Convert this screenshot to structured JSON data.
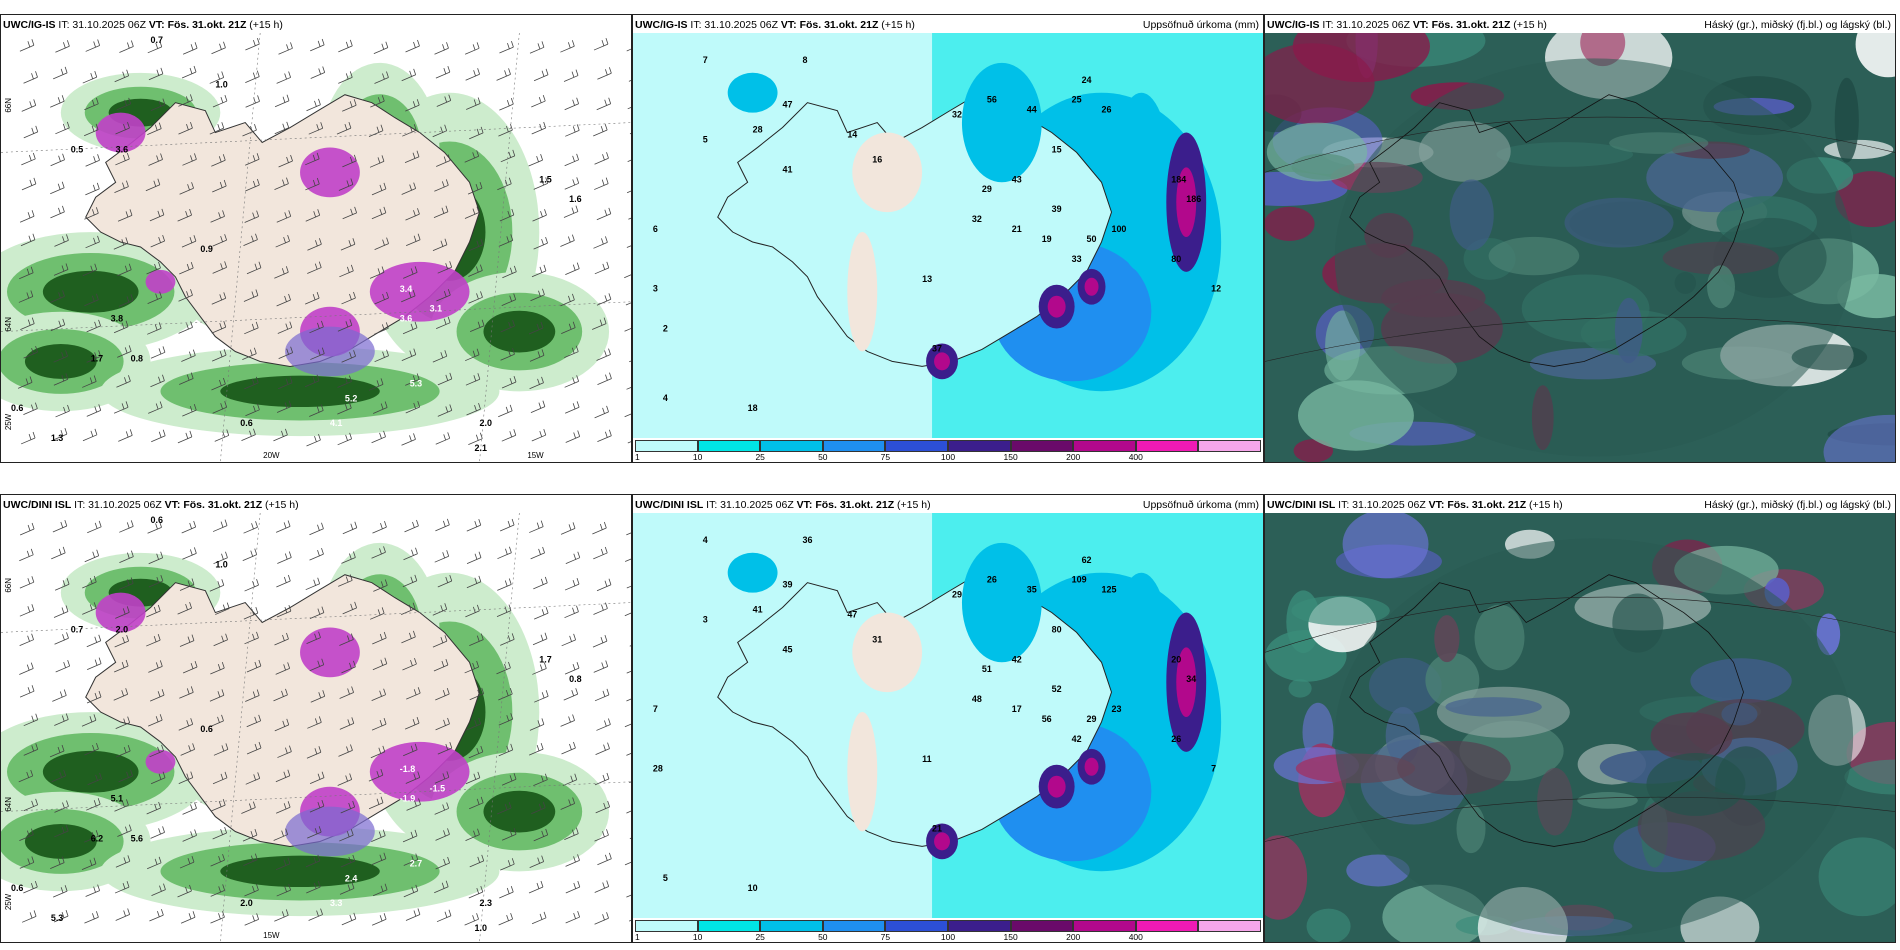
{
  "panels": [
    {
      "id": "p1",
      "model": "UWC/IG-IS",
      "it": "IT: 31.10.2025 06Z",
      "vt_label": "VT:",
      "vt": "Fös. 31.okt. 21Z",
      "lead": "(+15 h)",
      "right_title": "",
      "type": "wind-precip",
      "values": [
        "0.7",
        "1.0",
        "3.6",
        "0.5",
        "0.6",
        "3.4",
        "3.6",
        "3.1",
        "5.3",
        "5.2",
        "4.1",
        "3.8",
        "1.7",
        "0.8",
        "1.3",
        "2.0",
        "2.1",
        "0.6",
        "0.9",
        "1.5",
        "1.6"
      ],
      "axis_labels": [
        "66N",
        "64N",
        "25W",
        "20W",
        "15W"
      ]
    },
    {
      "id": "p2",
      "model": "UWC/IG-IS",
      "it": "IT: 31.10.2025 06Z",
      "vt_label": "VT:",
      "vt": "Fös. 31.okt. 21Z",
      "lead": "(+15 h)",
      "right_title": "Uppsöfnuð úrkoma (mm)",
      "type": "precip",
      "values": [
        "7",
        "5",
        "6",
        "8",
        "47",
        "28",
        "41",
        "14",
        "16",
        "32",
        "56",
        "44",
        "43",
        "29",
        "32",
        "21",
        "24",
        "25",
        "26",
        "15",
        "39",
        "19",
        "33",
        "50",
        "100",
        "184",
        "186",
        "80",
        "37",
        "13",
        "18",
        "12",
        "4",
        "3",
        "2"
      ],
      "colorbar_ticks": [
        "1",
        "10",
        "25",
        "50",
        "75",
        "100",
        "150",
        "200",
        "400"
      ],
      "colorbar_colors": [
        "#bffafa",
        "#00e6e6",
        "#00c0e8",
        "#1f8ff0",
        "#2c4fd6",
        "#3b1e8c",
        "#6a0a6a",
        "#b2088c",
        "#f01ab4",
        "#f5a6ea"
      ]
    },
    {
      "id": "p3",
      "model": "UWC/IG-IS",
      "it": "IT: 31.10.2025 06Z",
      "vt_label": "VT:",
      "vt": "Fös. 31.okt. 21Z",
      "lead": "(+15 h)",
      "right_title": "Háský (gr.), miðský (fj.bl.) og lágský (bl.)",
      "type": "clouds",
      "values": []
    },
    {
      "id": "p4",
      "model": "UWC/DINI ISL",
      "it": "IT: 31.10.2025 06Z",
      "vt_label": "VT:",
      "vt": "Fös. 31.okt. 21Z",
      "lead": "(+15 h)",
      "right_title": "",
      "type": "wind-precip",
      "values": [
        "0.6",
        "1.0",
        "2.0",
        "0.7",
        "0.6",
        "-1.8",
        "-1.9",
        "-1.5",
        "2.7",
        "2.4",
        "3.3",
        "5.1",
        "6.2",
        "5.6",
        "5.3",
        "2.3",
        "1.0",
        "2.0",
        "0.6",
        "1.7",
        "0.8"
      ],
      "axis_labels": [
        "66N",
        "64N",
        "25W",
        "15W"
      ]
    },
    {
      "id": "p5",
      "model": "UWC/DINI ISL",
      "it": "IT: 31.10.2025 06Z",
      "vt_label": "VT:",
      "vt": "Fös. 31.okt. 21Z",
      "lead": "(+15 h)",
      "right_title": "Uppsöfnuð úrkoma (mm)",
      "type": "precip",
      "values": [
        "4",
        "3",
        "7",
        "36",
        "39",
        "41",
        "45",
        "47",
        "31",
        "29",
        "26",
        "35",
        "42",
        "51",
        "48",
        "17",
        "62",
        "109",
        "125",
        "80",
        "52",
        "56",
        "42",
        "29",
        "23",
        "20",
        "34",
        "26",
        "21",
        "11",
        "10",
        "7",
        "5",
        "28"
      ],
      "colorbar_ticks": [
        "1",
        "10",
        "25",
        "50",
        "75",
        "100",
        "150",
        "200",
        "400"
      ],
      "colorbar_colors": [
        "#bffafa",
        "#00e6e6",
        "#00c0e8",
        "#1f8ff0",
        "#2c4fd6",
        "#3b1e8c",
        "#6a0a6a",
        "#b2088c",
        "#f01ab4",
        "#f5a6ea"
      ]
    },
    {
      "id": "p6",
      "model": "UWC/DINI ISL",
      "it": "IT: 31.10.2025 06Z",
      "vt_label": "VT:",
      "vt": "Fös. 31.okt. 21Z",
      "lead": "(+15 h)",
      "right_title": "Háský (gr.), miðský (fj.bl.) og lágský (bl.)",
      "type": "clouds",
      "values": []
    }
  ]
}
